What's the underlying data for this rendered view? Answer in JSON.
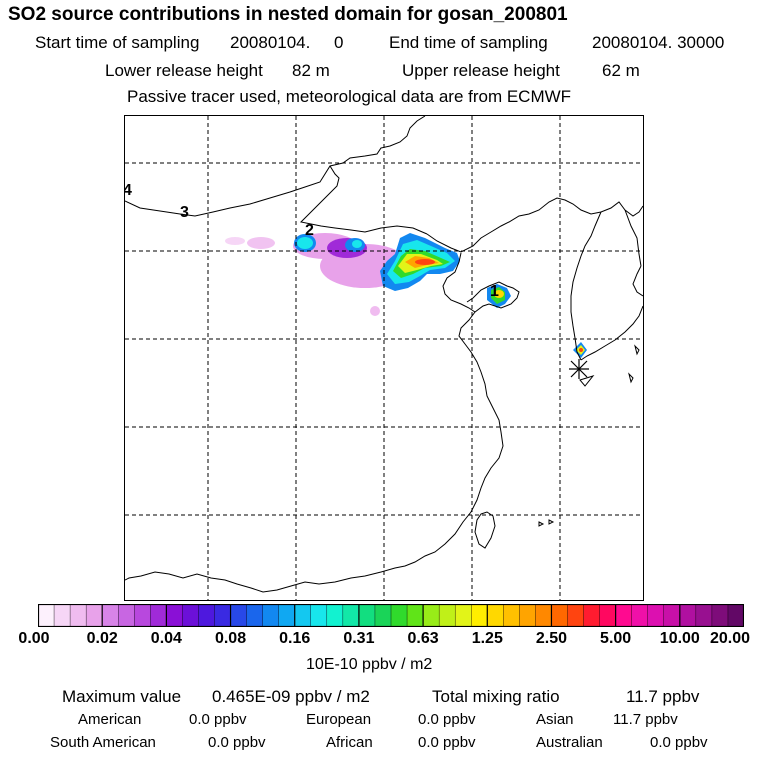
{
  "header": {
    "title": "SO2 source contributions in nested domain for gosan_200801",
    "start_label": "Start time of sampling",
    "start_value": "20080104.     0",
    "end_label": "End time of sampling",
    "end_value": "20080104. 30000",
    "lower_label": "Lower release height",
    "lower_value": "82 m",
    "upper_label": "Upper release height",
    "upper_value": "62 m",
    "note": "Passive tracer used, meteorological data are from ECMWF"
  },
  "map": {
    "labels": [
      {
        "text": "4",
        "name": "source-label-4"
      },
      {
        "text": "3",
        "name": "source-label-3"
      },
      {
        "text": "2",
        "name": "source-label-2"
      },
      {
        "text": "1",
        "name": "source-label-1"
      }
    ],
    "receptor_icon": "asterisk-receptor-icon"
  },
  "colorbar": {
    "colors": [
      "#fdf1fd",
      "#f6d6f6",
      "#f0bcf0",
      "#e8a2ea",
      "#d884e8",
      "#c866e2",
      "#b848de",
      "#a02ad8",
      "#8a10d6",
      "#6c10d8",
      "#4e18de",
      "#3a2ae2",
      "#2848e8",
      "#1a66ec",
      "#1288f0",
      "#10a8f2",
      "#14c8f0",
      "#18e6ec",
      "#12f2d0",
      "#12e8a8",
      "#12de80",
      "#1ad458",
      "#30da2c",
      "#60e418",
      "#98ec18",
      "#c0f018",
      "#e2f418",
      "#ffee00",
      "#ffd800",
      "#ffc000",
      "#ffa400",
      "#ff8800",
      "#ff6800",
      "#ff4410",
      "#ff1c30",
      "#ff0860",
      "#ff0a90",
      "#f010a8",
      "#dc10b0",
      "#c810a8",
      "#b010a0",
      "#981090",
      "#7e0c7a",
      "#620866"
    ],
    "ticks": [
      "0.00",
      "0.02",
      "0.04",
      "0.08",
      "0.16",
      "0.31",
      "0.63",
      "1.25",
      "2.50",
      "5.00",
      "10.00",
      "20.00"
    ],
    "unit": "10E-10 ppbv / m2"
  },
  "footer": {
    "max_label": "Maximum value",
    "max_value": "0.465E-09 ppbv / m2",
    "total_label": "Total mixing ratio",
    "total_value": "11.7 ppbv",
    "regions": [
      {
        "name": "American",
        "value": "0.0 ppbv"
      },
      {
        "name": "European",
        "value": "0.0 ppbv"
      },
      {
        "name": "Asian",
        "value": "11.7 ppbv"
      },
      {
        "name": "South American",
        "value": "0.0 ppbv"
      },
      {
        "name": "African",
        "value": "0.0 ppbv"
      },
      {
        "name": "Australian",
        "value": "0.0 ppbv"
      }
    ]
  }
}
